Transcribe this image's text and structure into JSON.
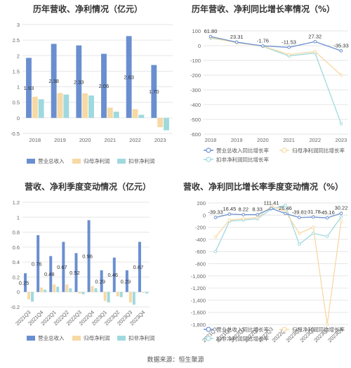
{
  "source": "数据来源：恒生聚源",
  "chart_data": [
    {
      "type": "bar",
      "title": "历年营收、净利情况（亿元）",
      "categories": [
        "2018",
        "2019",
        "2020",
        "2021",
        "2022",
        "2023"
      ],
      "ylim": [
        -0.5,
        3
      ],
      "yticks": [
        "-0.5",
        "0",
        "0.5",
        "1",
        "1.5",
        "2",
        "2.5",
        "3"
      ],
      "ytick_values": [
        -0.5,
        0,
        0.5,
        1,
        1.5,
        2,
        2.5,
        3
      ],
      "series": [
        {
          "name": "营业总收入",
          "color": "#6a8fd0",
          "values": [
            1.93,
            2.38,
            2.33,
            2.06,
            2.63,
            1.7
          ],
          "labels": [
            "1.93",
            "2.38",
            "2.33",
            "2.06",
            "2.63",
            "1.70"
          ]
        },
        {
          "name": "归母净利润",
          "color": "#f7d9a4",
          "values": [
            0.68,
            0.8,
            0.79,
            0.33,
            0.28,
            -0.3
          ]
        },
        {
          "name": "扣非净利润",
          "color": "#9fd9de",
          "values": [
            0.6,
            0.75,
            0.72,
            0.2,
            0.1,
            -0.4
          ]
        }
      ],
      "legend": "bottom"
    },
    {
      "type": "line",
      "title": "历年营收、净利同比增长率情况（%）",
      "categories": [
        "2018",
        "2019",
        "2020",
        "2021",
        "2022",
        "2023"
      ],
      "ylim": [
        -600,
        100
      ],
      "yticks": [
        "-600",
        "-500",
        "-400",
        "-300",
        "-200",
        "-100",
        "0",
        "100"
      ],
      "ytick_values": [
        -600,
        -500,
        -400,
        -300,
        -200,
        -100,
        0,
        100
      ],
      "series": [
        {
          "name": "营业总收入同比增长率",
          "color": "#6a8fd0",
          "values": [
            61.8,
            23.31,
            -1.76,
            -11.53,
            27.32,
            -35.33
          ],
          "labels": [
            "61.80",
            "23.31",
            "-1.76",
            "-11.53",
            "27.32",
            "-35.33"
          ]
        },
        {
          "name": "归母净利润同比增长率",
          "color": "#f7d9a4",
          "values": [
            55,
            20,
            -3,
            -60,
            -40,
            -200
          ]
        },
        {
          "name": "扣非净利润同比增长率",
          "color": "#9fd9de",
          "values": [
            50,
            25,
            -5,
            -70,
            -50,
            -530
          ]
        }
      ],
      "legend": "bottom"
    },
    {
      "type": "bar",
      "title": "营收、净利季度变动情况（亿元）",
      "categories": [
        "2021Q3",
        "2021Q4",
        "2022Q1",
        "2022Q2",
        "2022Q3",
        "2022Q4",
        "2023Q1",
        "2023Q2",
        "2023Q3",
        "2023Q4"
      ],
      "ylim": [
        -0.2,
        1.2
      ],
      "yticks": [
        "-0.2",
        "0",
        "0.2",
        "0.4",
        "0.6",
        "0.8",
        "1",
        "1.2"
      ],
      "ytick_values": [
        -0.2,
        0,
        0.2,
        0.4,
        0.6,
        0.8,
        1,
        1.2
      ],
      "series": [
        {
          "name": "营业总收入",
          "color": "#6a8fd0",
          "values": [
            0.25,
            0.76,
            0.48,
            0.67,
            0.52,
            0.96,
            0.29,
            0.46,
            0.29,
            0.67
          ],
          "labels": [
            "0.25",
            "0.76",
            "0.48",
            "0.67",
            "0.52",
            "0.96",
            "0.29",
            "0.46",
            "0.29",
            "0.67"
          ]
        },
        {
          "name": "归母净利润",
          "color": "#f7d9a4",
          "values": [
            -0.1,
            0.06,
            0.1,
            0.1,
            -0.02,
            0.08,
            -0.12,
            -0.06,
            -0.14,
            -0.01
          ]
        },
        {
          "name": "扣非净利润",
          "color": "#9fd9de",
          "values": [
            -0.13,
            0.03,
            0.07,
            0.05,
            -0.03,
            0.05,
            -0.14,
            -0.07,
            -0.17,
            -0.02
          ]
        }
      ],
      "legend": "bottom"
    },
    {
      "type": "line",
      "title": "营收、净利同比增长率季度变动情况（%）",
      "categories": [
        "2021Q3",
        "2021Q4",
        "2022Q1",
        "2022Q2",
        "2022Q3",
        "2022Q4",
        "2023Q1",
        "2023Q2",
        "2023Q3",
        "2023Q4"
      ],
      "ylim": [
        -1800,
        200
      ],
      "yticks": [
        "-1,800",
        "-1,600",
        "-1,400",
        "-1,200",
        "-1,000",
        "-800",
        "-600",
        "-400",
        "-200",
        "0",
        "200"
      ],
      "ytick_values": [
        -1800,
        -1600,
        -1400,
        -1200,
        -1000,
        -800,
        -600,
        -400,
        -200,
        0,
        200
      ],
      "series": [
        {
          "name": "营业总收入同比增长率",
          "color": "#6a8fd0",
          "values": [
            -39.33,
            16.45,
            8.22,
            8.33,
            111.41,
            26.46,
            -39.81,
            -31.78,
            -45.16,
            30.22
          ],
          "labels": [
            "-39.33",
            "16.45",
            "8.22",
            "8.33",
            "111.41",
            "26.46",
            "-39.81",
            "-31.78",
            "-45.16",
            "30.22"
          ]
        },
        {
          "name": "归母净利润同比增长率",
          "color": "#f7d9a4",
          "values": [
            -360,
            -80,
            -60,
            -40,
            150,
            60,
            -300,
            -200,
            -1800,
            -100
          ]
        },
        {
          "name": "扣非净利润同比增长率",
          "color": "#9fd9de",
          "values": [
            -600,
            -100,
            -80,
            -60,
            100,
            160,
            -480,
            -300,
            -350,
            -30
          ]
        }
      ],
      "legend": "bottom"
    }
  ]
}
